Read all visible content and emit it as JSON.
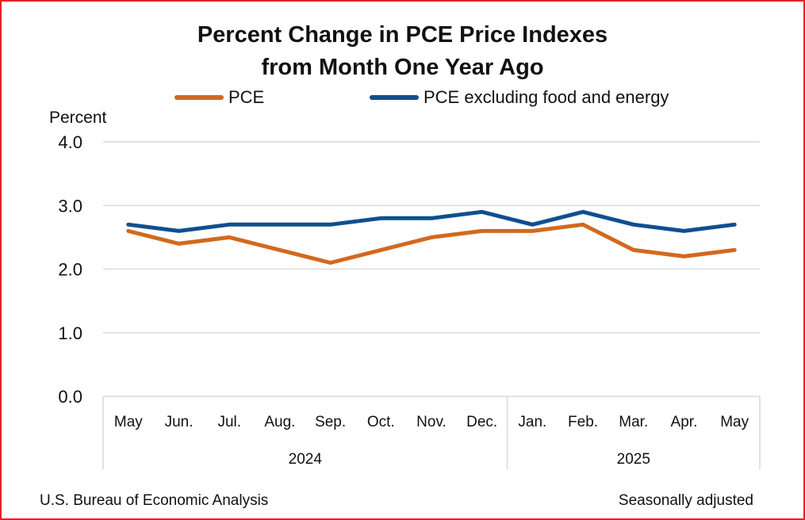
{
  "chart_data": {
    "type": "line",
    "title_line1": "Percent Change in PCE Price Indexes",
    "title_line2": "from Month One Year Ago",
    "ylabel": "Percent",
    "ylim": [
      0,
      4
    ],
    "yticks": [
      "4.0",
      "3.0",
      "2.0",
      "1.0",
      "0.0"
    ],
    "ytick_values": [
      4,
      3,
      2,
      1,
      0
    ],
    "categories": [
      "May",
      "Jun.",
      "Jul.",
      "Aug.",
      "Sep.",
      "Oct.",
      "Nov.",
      "Dec.",
      "Jan.",
      "Feb.",
      "Mar.",
      "Apr.",
      "May"
    ],
    "year_groups": [
      {
        "label": "2024",
        "start": 0,
        "end": 7
      },
      {
        "label": "2025",
        "start": 8,
        "end": 12
      }
    ],
    "grid": true,
    "legend_position": "top",
    "series": [
      {
        "name": "PCE",
        "color": "#d2691e",
        "values": [
          2.6,
          2.4,
          2.5,
          2.3,
          2.1,
          2.3,
          2.5,
          2.6,
          2.6,
          2.7,
          2.3,
          2.2,
          2.3
        ]
      },
      {
        "name": "PCE excluding food and energy",
        "color": "#0f4f8f",
        "values": [
          2.7,
          2.6,
          2.7,
          2.7,
          2.7,
          2.8,
          2.8,
          2.9,
          2.7,
          2.9,
          2.7,
          2.6,
          2.7
        ]
      }
    ]
  },
  "footer": {
    "source": "U.S. Bureau of Economic Analysis",
    "note": "Seasonally adjusted"
  },
  "colors": {
    "border": "#e8202a",
    "grid": "#d9d9d9"
  }
}
